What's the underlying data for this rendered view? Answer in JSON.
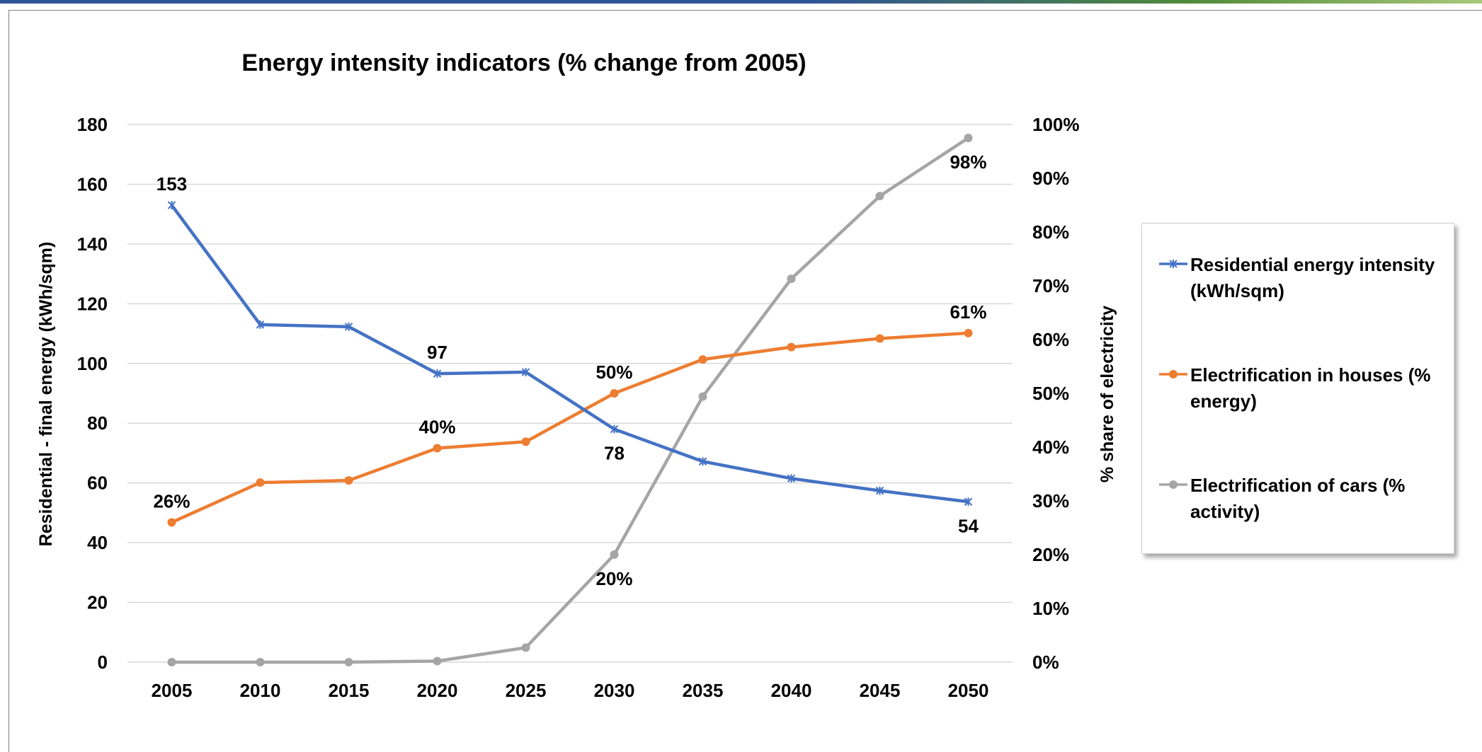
{
  "chart_data": {
    "type": "line",
    "title": "Energy intensity indicators (% change from 2005)",
    "categories": [
      "2005",
      "2010",
      "2015",
      "2020",
      "2025",
      "2030",
      "2035",
      "2040",
      "2045",
      "2050"
    ],
    "y_left": {
      "label": "Residential - final energy (kWh/sqm)",
      "ylim": [
        0,
        180
      ],
      "ticks": [
        "0",
        "20",
        "40",
        "60",
        "80",
        "100",
        "120",
        "140",
        "160",
        "180"
      ]
    },
    "y_right": {
      "label": "% share of electricity",
      "ylim": [
        0,
        1
      ],
      "ticks": [
        "0%",
        "10%",
        "20%",
        "30%",
        "40%",
        "50%",
        "60%",
        "70%",
        "80%",
        "90%",
        "100%"
      ]
    },
    "grid": true,
    "legend_position": "right",
    "series": [
      {
        "name": "Residential energy intensity (kWh/sqm)",
        "axis": "left",
        "color": "#4472c4",
        "marker": "star",
        "values": [
          153,
          113,
          112.3,
          96.6,
          97.1,
          78,
          67.2,
          61.5,
          57.4,
          53.7
        ],
        "labels": [
          {
            "index": 0,
            "text": "153",
            "pos": "above"
          },
          {
            "index": 3,
            "text": "97",
            "pos": "above"
          },
          {
            "index": 5,
            "text": "78",
            "pos": "below"
          },
          {
            "index": 9,
            "text": "54",
            "pos": "below"
          }
        ]
      },
      {
        "name": "Electrification in houses (% energy)",
        "axis": "right",
        "color": "#ed7d31",
        "marker": "circle",
        "values": [
          0.26,
          0.334,
          0.338,
          0.398,
          0.41,
          0.5,
          0.563,
          0.586,
          0.602,
          0.612
        ],
        "labels": [
          {
            "index": 0,
            "text": "26%",
            "pos": "above"
          },
          {
            "index": 3,
            "text": "40%",
            "pos": "above"
          },
          {
            "index": 5,
            "text": "50%",
            "pos": "above"
          },
          {
            "index": 9,
            "text": "61%",
            "pos": "above"
          }
        ]
      },
      {
        "name": "Electrification of cars (% activity)",
        "axis": "right",
        "color": "#a5a5a5",
        "marker": "circle",
        "values": [
          0.0,
          0.0,
          0.0,
          0.002,
          0.027,
          0.2,
          0.494,
          0.713,
          0.867,
          0.975
        ],
        "labels": [
          {
            "index": 5,
            "text": "20%",
            "pos": "below"
          },
          {
            "index": 9,
            "text": "98%",
            "pos": "below"
          }
        ]
      }
    ]
  }
}
